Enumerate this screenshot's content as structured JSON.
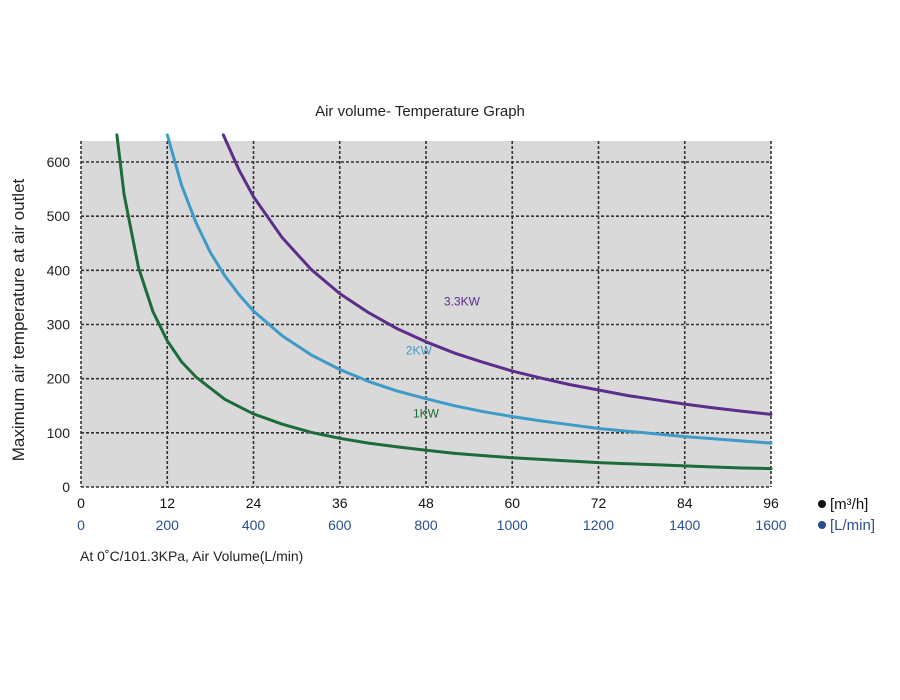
{
  "chart_data": {
    "type": "line",
    "title": "Air volume- Temperature Graph",
    "ylabel": "Maximum air temperature at air outlet",
    "xlabel": "At 0˚C/101.3KPa,  Air Volume(L/min)",
    "x_unit_primary": "[m³/h]",
    "x_unit_secondary": "[L/min]",
    "x_primary_ticks": [
      "0",
      "12",
      "24",
      "36",
      "48",
      "60",
      "72",
      "84",
      "96"
    ],
    "x_secondary_ticks": [
      "0",
      "200",
      "400",
      "600",
      "800",
      "1000",
      "1200",
      "1400",
      "1600"
    ],
    "y_ticks": [
      "0",
      "100",
      "200",
      "300",
      "400",
      "500",
      "600"
    ],
    "xlim": [
      0,
      96
    ],
    "ylim": [
      0,
      650
    ],
    "grid": true,
    "series": [
      {
        "name": "1KW",
        "color": "#1e6b3a",
        "x": [
          5.0,
          6,
          8,
          10,
          12,
          14,
          16,
          20,
          24,
          28,
          32,
          36,
          40,
          44,
          48,
          52,
          56,
          60,
          64,
          68,
          72,
          76,
          80,
          84,
          88,
          92,
          96
        ],
        "y": [
          650,
          540,
          405,
          324,
          270,
          231,
          203,
          162,
          135,
          116,
          101,
          90,
          81,
          74,
          68,
          62,
          58,
          54,
          51,
          48,
          45,
          43,
          41,
          39,
          37,
          35,
          34
        ]
      },
      {
        "name": "2KW",
        "color": "#3e9bc8",
        "x": [
          12.0,
          14,
          16,
          18,
          20,
          22,
          24,
          28,
          32,
          36,
          40,
          44,
          48,
          52,
          56,
          60,
          64,
          68,
          72,
          76,
          80,
          84,
          88,
          92,
          96
        ],
        "y": [
          650,
          557,
          488,
          433,
          390,
          355,
          325,
          279,
          244,
          217,
          195,
          177,
          163,
          150,
          139,
          130,
          122,
          115,
          108,
          103,
          98,
          93,
          89,
          85,
          81
        ]
      },
      {
        "name": "3.3KW",
        "color": "#5a2e8a",
        "x": [
          19.8,
          22,
          24,
          28,
          32,
          36,
          40,
          44,
          48,
          52,
          56,
          60,
          64,
          68,
          72,
          76,
          80,
          84,
          88,
          92,
          96
        ],
        "y": [
          650,
          585,
          536,
          460,
          402,
          357,
          322,
          292,
          268,
          247,
          230,
          214,
          201,
          189,
          179,
          169,
          161,
          153,
          146,
          140,
          134
        ]
      }
    ],
    "annotations": [
      {
        "text": "3.3KW",
        "x": 53,
        "y": 335,
        "color": "#5a2e8a"
      },
      {
        "text": "2KW",
        "x": 47,
        "y": 245,
        "color": "#3e9bc8"
      },
      {
        "text": "1KW",
        "x": 48,
        "y": 128,
        "color": "#1e6b3a"
      }
    ],
    "colors": {
      "plot_background": "#d9d9d9",
      "grid": "#333333"
    }
  }
}
